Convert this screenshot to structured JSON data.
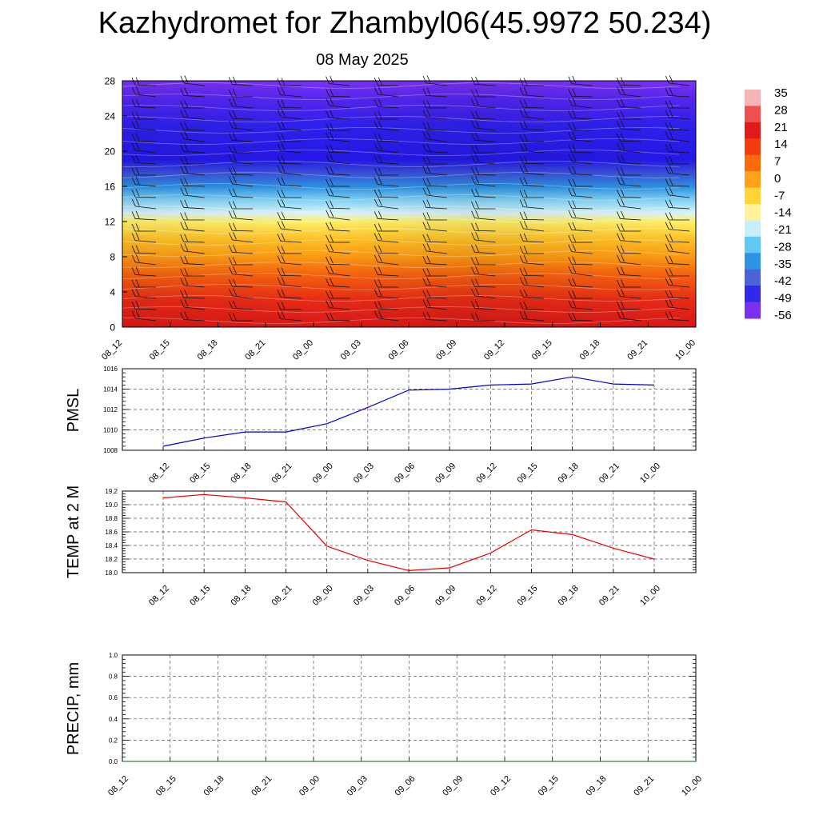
{
  "title": "Kazhydromet for Zhambyl06(45.9972 50.234)",
  "subtitle": "08 May 2025",
  "colorbar": {
    "labels": [
      "35",
      "28",
      "21",
      "14",
      "7",
      "0",
      "-7",
      "-14",
      "-21",
      "-28",
      "-35",
      "-42",
      "-49",
      "-56"
    ],
    "colors": [
      "#f6b4b4",
      "#ee5050",
      "#e01a1a",
      "#f23c10",
      "#fa6a0a",
      "#fda21a",
      "#fed436",
      "#fff29a",
      "#c8eefa",
      "#62c8f4",
      "#2f93e4",
      "#4c62d8",
      "#3228ea",
      "#7a30f0"
    ]
  },
  "chart_data": [
    {
      "type": "heatmap",
      "name": "section",
      "x_ticks": [
        "08_12",
        "08_15",
        "08_18",
        "08_21",
        "09_00",
        "09_03",
        "09_06",
        "09_09",
        "09_12",
        "09_15",
        "09_18",
        "09_21",
        "10_00"
      ],
      "y_ticks": [
        "0",
        "4",
        "8",
        "12",
        "16",
        "20",
        "24",
        "28"
      ],
      "ylim": [
        0,
        28
      ],
      "bands": [
        {
          "y": 0,
          "color": "#d81818"
        },
        {
          "y": 3,
          "color": "#e62a16"
        },
        {
          "y": 6,
          "color": "#f6620e"
        },
        {
          "y": 8,
          "color": "#fb9a14"
        },
        {
          "y": 10,
          "color": "#fdc126"
        },
        {
          "y": 12,
          "color": "#fff06a"
        },
        {
          "y": 13,
          "color": "#d8f3fb"
        },
        {
          "y": 14.5,
          "color": "#7ed0f4"
        },
        {
          "y": 16,
          "color": "#2c8fe0"
        },
        {
          "y": 17.5,
          "color": "#3a50d8"
        },
        {
          "y": 19,
          "color": "#2418e6"
        },
        {
          "y": 23,
          "color": "#3020ec"
        },
        {
          "y": 26,
          "color": "#5526ee"
        },
        {
          "y": 28,
          "color": "#7c32f2"
        }
      ]
    },
    {
      "type": "line",
      "name": "pmsl",
      "ylabel": "PMSL",
      "x_ticks": [
        "08_12",
        "08_15",
        "08_18",
        "08_21",
        "09_00",
        "09_03",
        "09_06",
        "09_09",
        "09_12",
        "09_15",
        "09_18",
        "09_21",
        "10_00"
      ],
      "y_ticks": [
        "1008",
        "1010",
        "1012",
        "1014",
        "1016"
      ],
      "ylim": [
        1008,
        1016
      ],
      "color": "#0000cc",
      "values": [
        1008.4,
        1009.2,
        1009.8,
        1009.8,
        1010.6,
        1012.2,
        1013.9,
        1014.0,
        1014.4,
        1014.5,
        1015.2,
        1014.5,
        1014.4
      ]
    },
    {
      "type": "line",
      "name": "temp",
      "ylabel": "TEMP at 2 M",
      "x_ticks": [
        "08_12",
        "08_15",
        "08_18",
        "08_21",
        "09_00",
        "09_03",
        "09_06",
        "09_09",
        "09_12",
        "09_15",
        "09_18",
        "09_21",
        "10_00"
      ],
      "y_ticks": [
        "18.0",
        "18.2",
        "18.4",
        "18.6",
        "18.8",
        "19.0",
        "19.2"
      ],
      "ylim": [
        18.0,
        19.2
      ],
      "color": "#ee0000",
      "values": [
        19.1,
        19.15,
        19.1,
        19.04,
        18.39,
        18.18,
        18.03,
        18.07,
        18.29,
        18.63,
        18.56,
        18.36,
        18.2
      ]
    },
    {
      "type": "line",
      "name": "precip",
      "ylabel": "PRECIP, mm",
      "x_ticks": [
        "08_12",
        "08_15",
        "08_18",
        "08_21",
        "09_00",
        "09_03",
        "09_06",
        "09_09",
        "09_12",
        "09_15",
        "09_18",
        "09_21",
        "10_00"
      ],
      "y_ticks": [
        "0.0",
        "0.2",
        "0.4",
        "0.6",
        "0.8",
        "1.0"
      ],
      "ylim": [
        0.0,
        1.0
      ],
      "color": "#2e8b2e",
      "values": [
        0,
        0,
        0,
        0,
        0,
        0,
        0,
        0,
        0,
        0,
        0,
        0,
        0
      ]
    }
  ]
}
